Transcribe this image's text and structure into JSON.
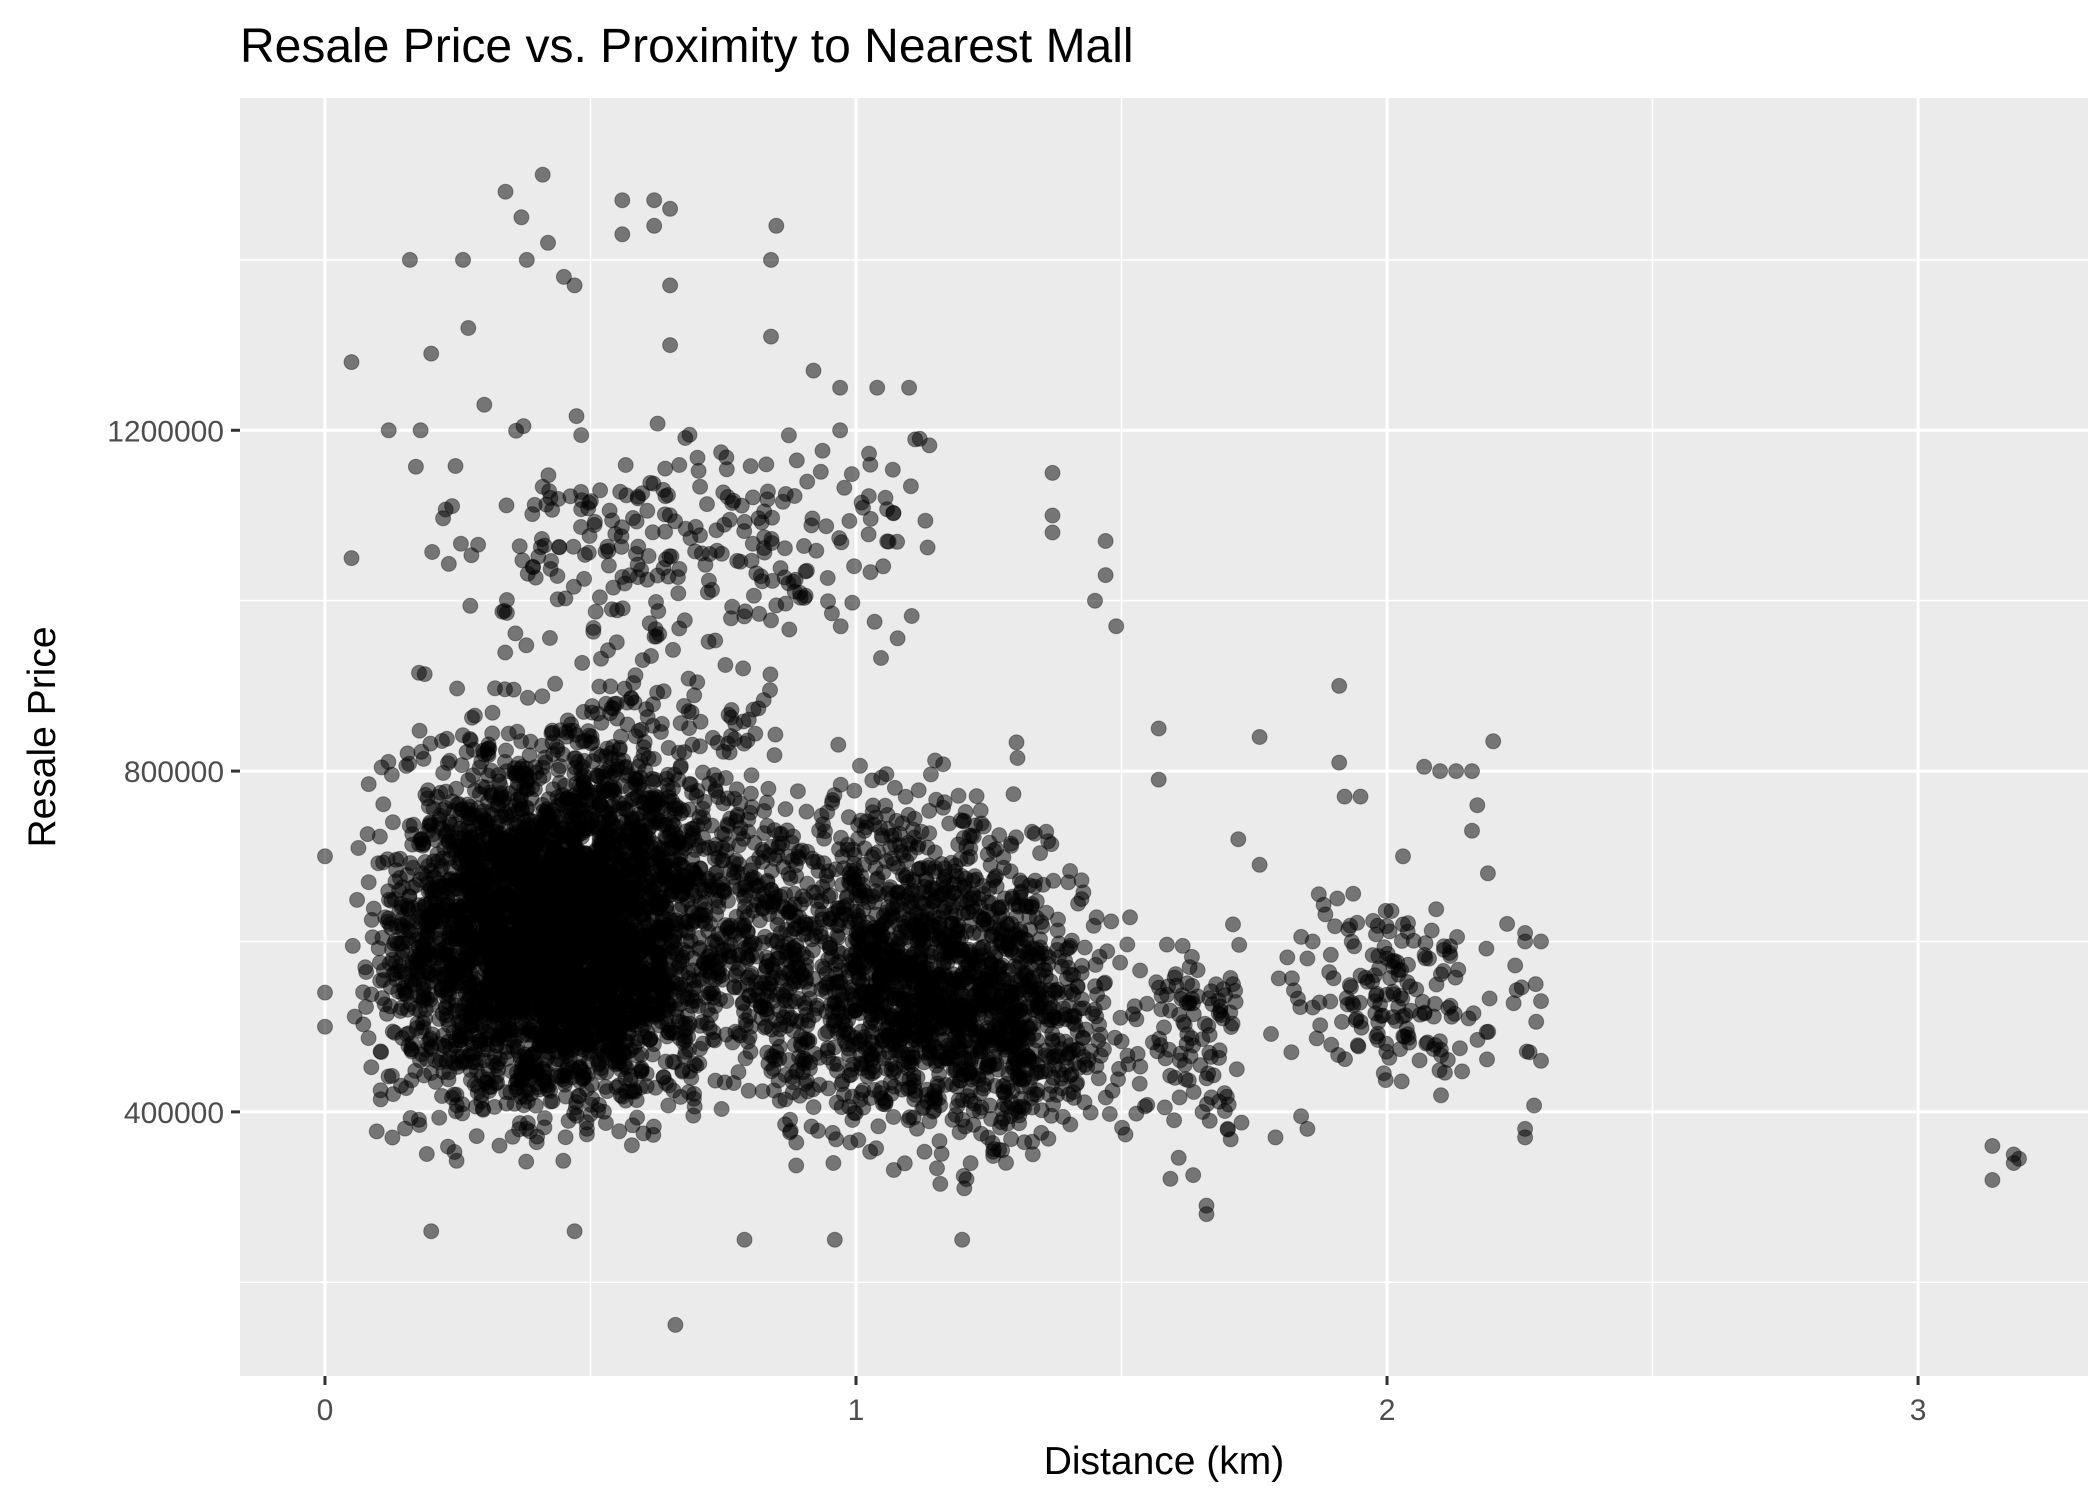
{
  "chart_data": {
    "type": "scatter",
    "title": "Resale Price vs. Proximity to Nearest Mall",
    "xlabel": "Distance (km)",
    "ylabel": "Resale Price",
    "xlim": [
      -0.16,
      3.32
    ],
    "ylim": [
      90000,
      1590000
    ],
    "x_ticks": [
      0,
      1,
      2,
      3
    ],
    "x_tick_labels": [
      "0",
      "1",
      "2",
      "3"
    ],
    "y_ticks": [
      400000,
      800000,
      1200000
    ],
    "y_tick_labels": [
      "400000",
      "800000",
      "1200000"
    ],
    "y_minor_ticks": [
      200000,
      600000,
      1000000,
      1400000
    ],
    "x_minor_ticks": [
      0.5,
      1.5,
      2.5
    ],
    "grid": true,
    "panel_color": "#ebebeb",
    "grid_color": "#ffffff",
    "point_color": "#000000",
    "point_alpha": 0.5,
    "legend": "none",
    "clusters": [
      {
        "x_range": [
          0.05,
          0.75
        ],
        "y_range": [
          320000,
          880000
        ],
        "count": 2600
      },
      {
        "x_range": [
          0.15,
          0.9
        ],
        "y_range": [
          300000,
          1000000
        ],
        "count": 1600
      },
      {
        "x_range": [
          0.7,
          1.45
        ],
        "y_range": [
          300000,
          850000
        ],
        "count": 1500
      },
      {
        "x_range": [
          1.0,
          1.55
        ],
        "y_range": [
          300000,
          700000
        ],
        "count": 500
      },
      {
        "x_range": [
          0.15,
          1.2
        ],
        "y_range": [
          900000,
          1250000
        ],
        "count": 260
      },
      {
        "x_range": [
          1.5,
          1.75
        ],
        "y_range": [
          300000,
          650000
        ],
        "count": 110
      },
      {
        "x_range": [
          1.75,
          2.3
        ],
        "y_range": [
          360000,
          720000
        ],
        "count": 170
      }
    ],
    "points": [
      {
        "x": 0.0,
        "y": 700000
      },
      {
        "x": 0.0,
        "y": 540000
      },
      {
        "x": 0.0,
        "y": 500000
      },
      {
        "x": 0.05,
        "y": 1280000
      },
      {
        "x": 0.05,
        "y": 1050000
      },
      {
        "x": 0.12,
        "y": 1200000
      },
      {
        "x": 0.16,
        "y": 1400000
      },
      {
        "x": 0.18,
        "y": 1200000
      },
      {
        "x": 0.2,
        "y": 1290000
      },
      {
        "x": 0.26,
        "y": 1400000
      },
      {
        "x": 0.27,
        "y": 1320000
      },
      {
        "x": 0.3,
        "y": 1230000
      },
      {
        "x": 0.34,
        "y": 1480000
      },
      {
        "x": 0.37,
        "y": 1450000
      },
      {
        "x": 0.38,
        "y": 1400000
      },
      {
        "x": 0.41,
        "y": 1500000
      },
      {
        "x": 0.42,
        "y": 1420000
      },
      {
        "x": 0.45,
        "y": 1380000
      },
      {
        "x": 0.47,
        "y": 1370000
      },
      {
        "x": 0.56,
        "y": 1470000
      },
      {
        "x": 0.56,
        "y": 1430000
      },
      {
        "x": 0.62,
        "y": 1470000
      },
      {
        "x": 0.62,
        "y": 1440000
      },
      {
        "x": 0.65,
        "y": 1460000
      },
      {
        "x": 0.65,
        "y": 1370000
      },
      {
        "x": 0.65,
        "y": 1300000
      },
      {
        "x": 0.84,
        "y": 1400000
      },
      {
        "x": 0.85,
        "y": 1440000
      },
      {
        "x": 0.84,
        "y": 1310000
      },
      {
        "x": 0.92,
        "y": 1270000
      },
      {
        "x": 0.97,
        "y": 1250000
      },
      {
        "x": 0.97,
        "y": 1200000
      },
      {
        "x": 1.04,
        "y": 1250000
      },
      {
        "x": 1.1,
        "y": 1250000
      },
      {
        "x": 1.12,
        "y": 1190000
      },
      {
        "x": 1.37,
        "y": 1150000
      },
      {
        "x": 1.37,
        "y": 1100000
      },
      {
        "x": 1.37,
        "y": 1080000
      },
      {
        "x": 1.47,
        "y": 1070000
      },
      {
        "x": 1.47,
        "y": 1030000
      },
      {
        "x": 1.45,
        "y": 1000000
      },
      {
        "x": 1.49,
        "y": 970000
      },
      {
        "x": 1.57,
        "y": 850000
      },
      {
        "x": 1.57,
        "y": 790000
      },
      {
        "x": 1.76,
        "y": 840000
      },
      {
        "x": 1.72,
        "y": 720000
      },
      {
        "x": 1.76,
        "y": 690000
      },
      {
        "x": 1.91,
        "y": 900000
      },
      {
        "x": 1.91,
        "y": 810000
      },
      {
        "x": 1.92,
        "y": 770000
      },
      {
        "x": 1.95,
        "y": 770000
      },
      {
        "x": 2.07,
        "y": 805000
      },
      {
        "x": 2.1,
        "y": 800000
      },
      {
        "x": 2.13,
        "y": 800000
      },
      {
        "x": 2.16,
        "y": 800000
      },
      {
        "x": 2.2,
        "y": 835000
      },
      {
        "x": 2.17,
        "y": 760000
      },
      {
        "x": 2.16,
        "y": 730000
      },
      {
        "x": 2.19,
        "y": 680000
      },
      {
        "x": 2.26,
        "y": 610000
      },
      {
        "x": 2.26,
        "y": 600000
      },
      {
        "x": 2.29,
        "y": 600000
      },
      {
        "x": 2.28,
        "y": 550000
      },
      {
        "x": 2.29,
        "y": 530000
      },
      {
        "x": 2.29,
        "y": 460000
      },
      {
        "x": 2.26,
        "y": 380000
      },
      {
        "x": 2.26,
        "y": 370000
      },
      {
        "x": 2.03,
        "y": 700000
      },
      {
        "x": 2.03,
        "y": 620000
      },
      {
        "x": 2.0,
        "y": 580000
      },
      {
        "x": 1.95,
        "y": 560000
      },
      {
        "x": 1.86,
        "y": 600000
      },
      {
        "x": 1.85,
        "y": 580000
      },
      {
        "x": 1.82,
        "y": 470000
      },
      {
        "x": 1.85,
        "y": 380000
      },
      {
        "x": 1.79,
        "y": 370000
      },
      {
        "x": 1.71,
        "y": 620000
      },
      {
        "x": 1.71,
        "y": 550000
      },
      {
        "x": 1.7,
        "y": 380000
      },
      {
        "x": 1.66,
        "y": 290000
      },
      {
        "x": 1.66,
        "y": 280000
      },
      {
        "x": 0.66,
        "y": 150000
      },
      {
        "x": 0.79,
        "y": 250000
      },
      {
        "x": 0.96,
        "y": 250000
      },
      {
        "x": 1.2,
        "y": 250000
      },
      {
        "x": 0.2,
        "y": 260000
      },
      {
        "x": 0.47,
        "y": 260000
      },
      {
        "x": 3.14,
        "y": 360000
      },
      {
        "x": 3.14,
        "y": 320000
      },
      {
        "x": 3.18,
        "y": 350000
      },
      {
        "x": 3.18,
        "y": 340000
      },
      {
        "x": 3.19,
        "y": 345000
      }
    ]
  }
}
